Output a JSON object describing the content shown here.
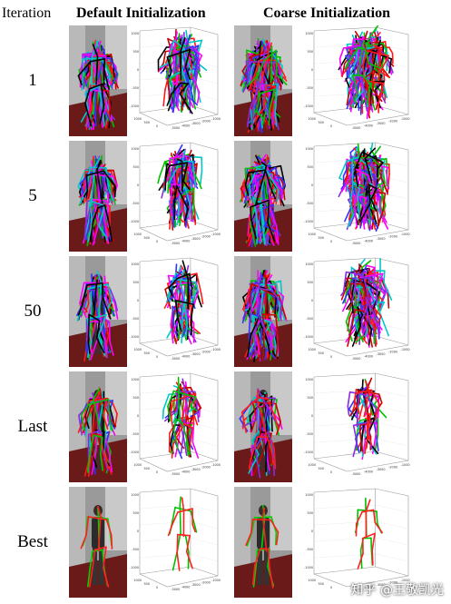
{
  "headers": {
    "iteration": "Iteration",
    "default": "Default Initialization",
    "coarse": "Coarse Initialization"
  },
  "rows": [
    {
      "label": "1",
      "default_n": 22,
      "coarse_n": 34
    },
    {
      "label": "5",
      "default_n": 22,
      "coarse_n": 30
    },
    {
      "label": "50",
      "default_n": 14,
      "coarse_n": 24
    },
    {
      "label": "Last",
      "default_n": 10,
      "coarse_n": 9
    },
    {
      "label": "Best",
      "default_n": 1,
      "coarse_n": 1
    }
  ],
  "plot_ticks": {
    "vertical": [
      "1000",
      "500",
      "0",
      "-500",
      "-1000"
    ],
    "depth": [
      "1000",
      "500",
      "0"
    ],
    "lateral": [
      "-5000",
      "-4000",
      "-3000",
      "-2000",
      "-1000"
    ]
  },
  "colors": {
    "skeleton": [
      "#ff1a1a",
      "#00c000",
      "#3333ff",
      "#ff00ff",
      "#00c8c8",
      "#000000",
      "#cc0000",
      "#8a2be2"
    ],
    "floor": "#6b1a1a",
    "wall": "#9a9a9a"
  },
  "watermark": "知乎 @王敬凯光"
}
